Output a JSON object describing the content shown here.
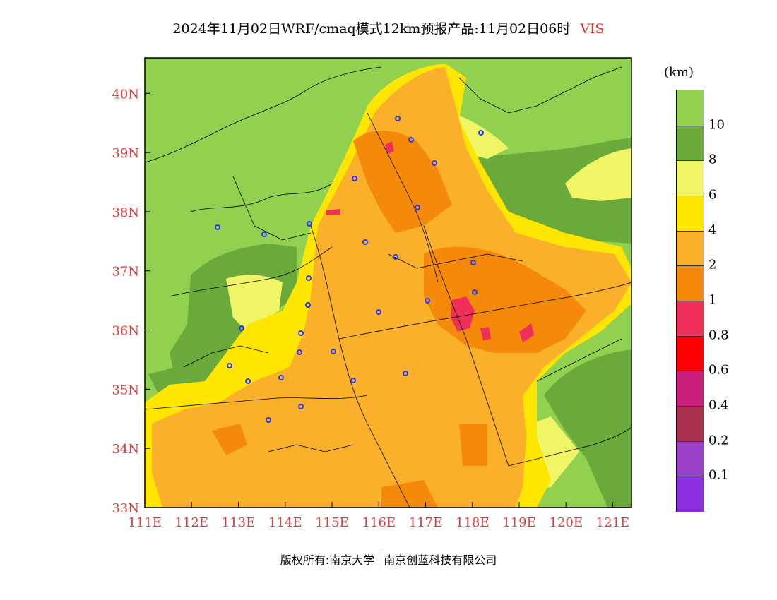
{
  "title": {
    "text": "2024年11月02日WRF/cmaq模式12km预报产品:11月02日06时",
    "variable": "VIS"
  },
  "map": {
    "lon_range": [
      111,
      121.4
    ],
    "lat_range": [
      33,
      40.6
    ],
    "x_tick_labels": [
      "111E",
      "112E",
      "113E",
      "114E",
      "115E",
      "116E",
      "117E",
      "118E",
      "119E",
      "120E",
      "121E"
    ],
    "y_tick_labels": [
      "33N",
      "34N",
      "35N",
      "36N",
      "37N",
      "38N",
      "39N",
      "40N"
    ],
    "colors": {
      "gt10": "#92d050",
      "8_10": "#6aaa3a",
      "6_8": "#f0f566",
      "4_6": "#ffe600",
      "2_4": "#fbb02b",
      "1_2": "#f58a0a",
      "0.8_1": "#f0305a",
      "0.6_0.8": "#ff0000",
      "0.4_0.6": "#c8207a",
      "0.2_0.4": "#a83050",
      "0.1_0.2": "#9a40c8",
      "lt0.1": "#8a2ee0"
    }
  },
  "colorbar": {
    "unit": "(km)",
    "labels": [
      "10",
      "8",
      "6",
      "4",
      "2",
      "1",
      "0.8",
      "0.6",
      "0.4",
      "0.2",
      "0.1"
    ],
    "segment_colors": [
      "#92d050",
      "#6aaa3a",
      "#f0f566",
      "#ffe600",
      "#fbb02b",
      "#f58a0a",
      "#f0305a",
      "#ff0000",
      "#c8207a",
      "#a83050",
      "#9a40c8",
      "#8a2ee0"
    ]
  },
  "footer": {
    "left": "版权所有:南京大学",
    "right": "南京创蓝科技有限公司"
  }
}
